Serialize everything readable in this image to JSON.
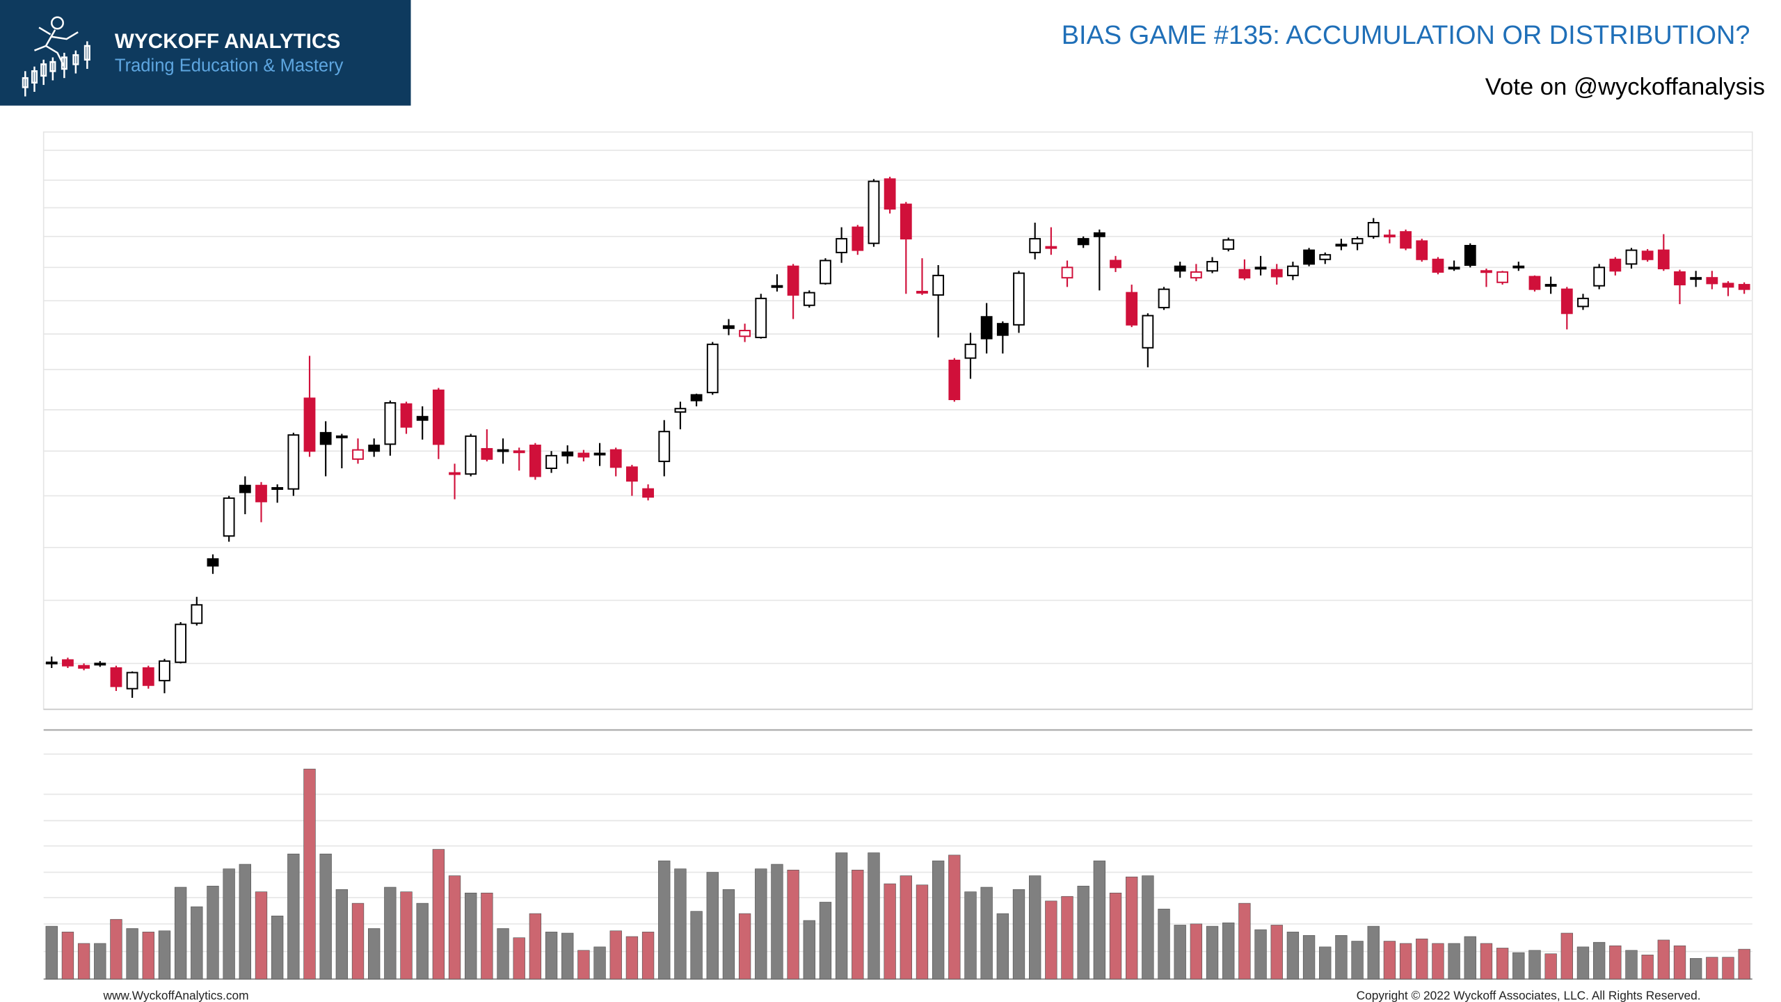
{
  "logo": {
    "name": "WYCKOFF ANALYTICS",
    "tagline": "Trading Education & Mastery"
  },
  "footer": {
    "website": "www.WyckoffAnalytics.com",
    "copyright": "Copyright © 2022 Wyckoff Associates, LLC. All Rights Reserved."
  },
  "chart_data": [
    {
      "type": "candlestick",
      "title": "BIAS GAME #135: ACCUMULATION OR DISTRIBUTION?",
      "subtitle": "Vote on @wyckoffanalysis",
      "open": [
        43,
        45,
        40,
        42,
        38,
        20,
        38,
        27,
        43,
        77,
        133,
        153,
        197,
        197,
        195,
        194,
        273,
        243,
        240,
        220,
        232,
        233,
        268,
        257,
        280,
        208,
        207,
        229,
        228,
        227,
        232,
        212,
        226,
        225,
        225,
        228,
        213,
        194,
        218,
        261,
        276,
        278,
        336,
        327,
        326,
        371,
        388,
        354,
        373,
        400,
        422,
        408,
        464,
        442,
        366,
        363,
        306,
        308,
        344,
        338,
        337,
        400,
        405,
        378,
        412,
        417,
        393,
        365,
        317,
        352,
        388,
        378,
        384,
        403,
        385,
        387,
        385,
        380,
        402,
        394,
        407,
        408,
        414,
        415,
        418,
        410,
        394,
        387,
        406,
        384,
        374,
        388,
        379,
        372,
        368,
        353,
        371,
        394,
        390,
        401,
        402,
        383,
        378,
        378,
        373,
        372
      ],
      "high": [
        48,
        47,
        42,
        44,
        40,
        35,
        40,
        46,
        78,
        100,
        137,
        188,
        205,
        200,
        198,
        243,
        310,
        253,
        242,
        238,
        238,
        271,
        270,
        266,
        282,
        216,
        242,
        246,
        238,
        230,
        234,
        227,
        232,
        228,
        234,
        230,
        215,
        198,
        254,
        270,
        277,
        322,
        342,
        338,
        364,
        381,
        390,
        367,
        395,
        422,
        424,
        464,
        466,
        444,
        395,
        389,
        308,
        330,
        356,
        340,
        384,
        426,
        422,
        393,
        414,
        420,
        397,
        372,
        347,
        370,
        392,
        390,
        396,
        413,
        394,
        397,
        390,
        392,
        404,
        400,
        412,
        414,
        430,
        420,
        420,
        412,
        396,
        393,
        408,
        386,
        384,
        392,
        380,
        379,
        370,
        364,
        390,
        396,
        404,
        403,
        416,
        385,
        384,
        384,
        375,
        374
      ],
      "low": [
        38,
        38,
        36,
        39,
        18,
        12,
        20,
        16,
        42,
        75,
        120,
        148,
        172,
        165,
        182,
        188,
        222,
        205,
        212,
        216,
        222,
        223,
        242,
        237,
        220,
        185,
        205,
        218,
        216,
        210,
        202,
        208,
        216,
        218,
        214,
        205,
        188,
        184,
        205,
        246,
        266,
        276,
        328,
        322,
        325,
        366,
        342,
        352,
        372,
        391,
        398,
        405,
        434,
        364,
        363,
        326,
        270,
        290,
        312,
        312,
        330,
        394,
        398,
        370,
        404,
        367,
        383,
        335,
        300,
        350,
        378,
        375,
        382,
        401,
        376,
        380,
        372,
        376,
        388,
        390,
        402,
        402,
        412,
        408,
        402,
        392,
        381,
        384,
        387,
        370,
        372,
        384,
        366,
        364,
        333,
        350,
        368,
        380,
        386,
        392,
        384,
        355,
        370,
        368,
        362,
        364
      ],
      "close": [
        43,
        40,
        38,
        41,
        22,
        34,
        23,
        44,
        76,
        93,
        127,
        186,
        191,
        183,
        195,
        241,
        227,
        233,
        240,
        228,
        227,
        269,
        248,
        254,
        233,
        208,
        240,
        220,
        228,
        227,
        205,
        223,
        223,
        222,
        225,
        213,
        201,
        187,
        244,
        264,
        271,
        320,
        334,
        332,
        360,
        371,
        363,
        365,
        393,
        412,
        402,
        462,
        438,
        412,
        366,
        380,
        272,
        320,
        325,
        328,
        382,
        412,
        405,
        387,
        407,
        414,
        387,
        337,
        345,
        368,
        384,
        383,
        392,
        411,
        378,
        387,
        379,
        388,
        390,
        398,
        407,
        412,
        426,
        415,
        404,
        394,
        383,
        387,
        389,
        384,
        383,
        388,
        368,
        372,
        347,
        360,
        387,
        384,
        402,
        394,
        386,
        372,
        378,
        373,
        370,
        368
      ],
      "colors": [
        "#000000",
        "#d0103a",
        "#d0103a",
        "#000000",
        "#d0103a",
        "#000000",
        "#d0103a",
        "#000000",
        "#000000",
        "#000000",
        "#000000",
        "#000000",
        "#000000",
        "#d0103a",
        "#000000",
        "#000000",
        "#d0103a",
        "#000000",
        "#000000",
        "#d0103a",
        "#000000",
        "#000000",
        "#d0103a",
        "#000000",
        "#d0103a",
        "#d0103a",
        "#000000",
        "#d0103a",
        "#000000",
        "#d0103a",
        "#d0103a",
        "#000000",
        "#000000",
        "#d0103a",
        "#000000",
        "#d0103a",
        "#d0103a",
        "#d0103a",
        "#000000",
        "#000000",
        "#000000",
        "#000000",
        "#000000",
        "#d0103a",
        "#000000",
        "#000000",
        "#d0103a",
        "#000000",
        "#000000",
        "#000000",
        "#d0103a",
        "#000000",
        "#d0103a",
        "#d0103a",
        "#d0103a",
        "#000000",
        "#d0103a",
        "#000000",
        "#000000",
        "#000000",
        "#000000",
        "#000000",
        "#d0103a",
        "#d0103a",
        "#000000",
        "#000000",
        "#d0103a",
        "#d0103a",
        "#000000",
        "#000000",
        "#000000",
        "#d0103a",
        "#000000",
        "#000000",
        "#d0103a",
        "#000000",
        "#d0103a",
        "#000000",
        "#000000",
        "#000000",
        "#000000",
        "#000000",
        "#000000",
        "#d0103a",
        "#d0103a",
        "#d0103a",
        "#d0103a",
        "#000000",
        "#000000",
        "#d0103a",
        "#d0103a",
        "#000000",
        "#d0103a",
        "#000000",
        "#d0103a",
        "#000000",
        "#000000",
        "#d0103a",
        "#000000",
        "#d0103a",
        "#d0103a",
        "#d0103a",
        "#000000",
        "#d0103a",
        "#d0103a",
        "#d0103a"
      ],
      "ylim": [
        2,
        505
      ],
      "yticks": [
        42,
        97,
        143,
        188,
        227,
        263,
        298,
        329,
        358,
        387,
        414,
        439,
        463,
        489
      ],
      "grid": true
    },
    {
      "type": "bar",
      "values": [
        46,
        41,
        31,
        31,
        52,
        44,
        41,
        42,
        80,
        63,
        81,
        96,
        100,
        76,
        55,
        109,
        183,
        109,
        78,
        66,
        44,
        80,
        76,
        66,
        113,
        90,
        75,
        75,
        44,
        36,
        57,
        41,
        40,
        25,
        28,
        42,
        37,
        41,
        103,
        96,
        59,
        93,
        78,
        57,
        96,
        100,
        95,
        51,
        67,
        110,
        95,
        110,
        83,
        90,
        82,
        103,
        108,
        76,
        80,
        57,
        78,
        90,
        68,
        72,
        81,
        103,
        75,
        89,
        90,
        61,
        47,
        48,
        46,
        49,
        66,
        43,
        47,
        41,
        38,
        28,
        38,
        33,
        46,
        33,
        31,
        35,
        31,
        31,
        37,
        31,
        27,
        23,
        25,
        22,
        40,
        28,
        32,
        29,
        25,
        21,
        34,
        29,
        18,
        19,
        19,
        26
      ],
      "colors": [
        "#808080",
        "#cc6670",
        "#cc6670",
        "#808080",
        "#cc6670",
        "#808080",
        "#cc6670",
        "#808080",
        "#808080",
        "#808080",
        "#808080",
        "#808080",
        "#808080",
        "#cc6670",
        "#808080",
        "#808080",
        "#cc6670",
        "#808080",
        "#808080",
        "#cc6670",
        "#808080",
        "#808080",
        "#cc6670",
        "#808080",
        "#cc6670",
        "#cc6670",
        "#808080",
        "#cc6670",
        "#808080",
        "#cc6670",
        "#cc6670",
        "#808080",
        "#808080",
        "#cc6670",
        "#808080",
        "#cc6670",
        "#cc6670",
        "#cc6670",
        "#808080",
        "#808080",
        "#808080",
        "#808080",
        "#808080",
        "#cc6670",
        "#808080",
        "#808080",
        "#cc6670",
        "#808080",
        "#808080",
        "#808080",
        "#cc6670",
        "#808080",
        "#cc6670",
        "#cc6670",
        "#cc6670",
        "#808080",
        "#cc6670",
        "#808080",
        "#808080",
        "#808080",
        "#808080",
        "#808080",
        "#cc6670",
        "#cc6670",
        "#808080",
        "#808080",
        "#cc6670",
        "#cc6670",
        "#808080",
        "#808080",
        "#808080",
        "#cc6670",
        "#808080",
        "#808080",
        "#cc6670",
        "#808080",
        "#cc6670",
        "#808080",
        "#808080",
        "#808080",
        "#808080",
        "#808080",
        "#808080",
        "#cc6670",
        "#cc6670",
        "#cc6670",
        "#cc6670",
        "#808080",
        "#808080",
        "#cc6670",
        "#cc6670",
        "#808080",
        "#808080",
        "#cc6670",
        "#cc6670",
        "#808080",
        "#808080",
        "#cc6670",
        "#808080",
        "#cc6670",
        "#cc6670",
        "#cc6670",
        "#808080",
        "#cc6670",
        "#cc6670",
        "#cc6670"
      ],
      "ylim": [
        0,
        216
      ],
      "yticks": [
        24,
        48,
        71,
        93,
        116,
        138,
        161,
        196
      ],
      "grid": true
    }
  ]
}
